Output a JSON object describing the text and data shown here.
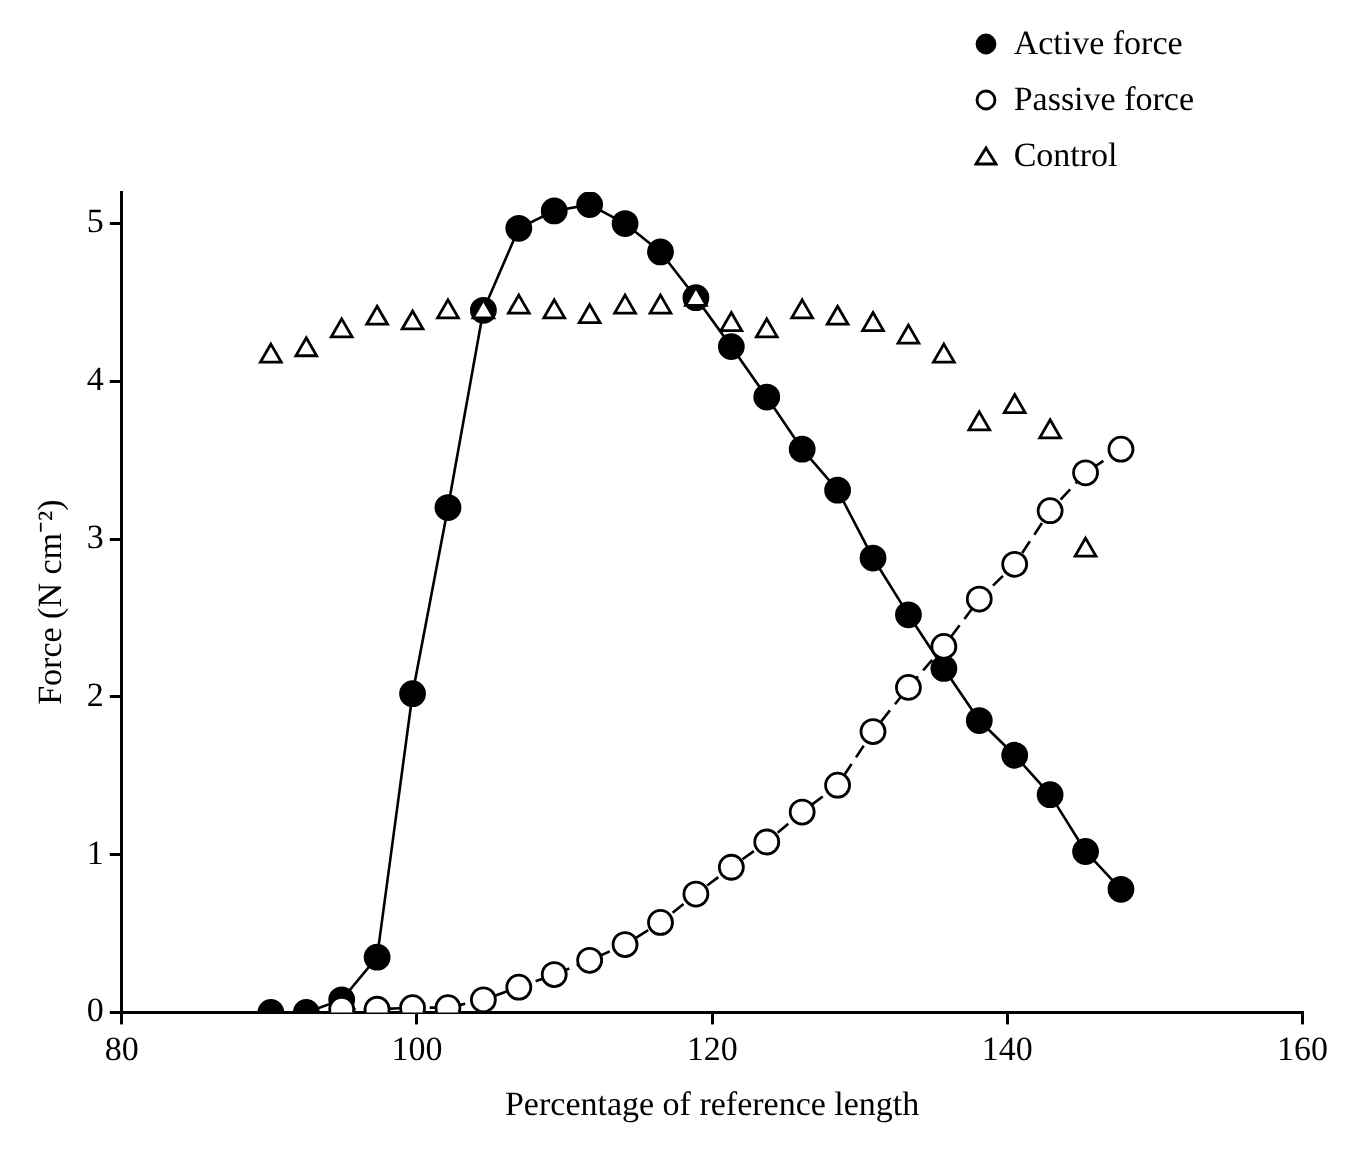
{
  "chart_data": {
    "type": "line",
    "xlabel": "Percentage of reference length",
    "ylabel": "Force (N cm⁻²)",
    "xlim": [
      80,
      160
    ],
    "xticks": [
      80,
      100,
      120,
      140,
      160
    ],
    "ylim": [
      0,
      5.2
    ],
    "yticks": [
      0,
      1,
      2,
      3,
      4,
      5
    ],
    "grid": false,
    "legend": "top right",
    "series": [
      {
        "name": "Active force",
        "color": "#000000",
        "marker": "circle",
        "line_style": "solid",
        "x": [
          90.1,
          92.5,
          94.9,
          97.3,
          99.7,
          102.1,
          104.5,
          106.9,
          109.3,
          111.7,
          114.1,
          116.5,
          118.9,
          121.3,
          123.7,
          126.1,
          128.5,
          130.9,
          133.3,
          135.7,
          138.1,
          140.5,
          142.9,
          145.3,
          147.7
        ],
        "values": [
          0,
          0,
          0.08,
          0.35,
          2.02,
          3.2,
          4.45,
          4.97,
          5.08,
          5.12,
          5.0,
          4.82,
          4.53,
          4.22,
          3.9,
          3.57,
          3.31,
          2.88,
          2.52,
          2.18,
          1.85,
          1.63,
          1.38,
          1.02,
          0.78
        ]
      },
      {
        "name": "Passive force",
        "color": "#000000",
        "marker": "circle",
        "line_style": "dashed",
        "x": [
          94.9,
          97.3,
          99.7,
          102.1,
          104.5,
          106.9,
          109.3,
          111.7,
          114.1,
          116.5,
          118.9,
          121.3,
          123.7,
          126.1,
          128.5,
          130.9,
          133.3,
          135.7,
          138.1,
          140.5,
          142.9,
          145.3,
          147.7
        ],
        "values": [
          0.02,
          0.02,
          0.03,
          0.03,
          0.08,
          0.16,
          0.24,
          0.33,
          0.43,
          0.57,
          0.75,
          0.92,
          1.08,
          1.27,
          1.44,
          1.78,
          2.06,
          2.32,
          2.62,
          2.84,
          3.18,
          3.42,
          3.57
        ]
      },
      {
        "name": "Control",
        "type": "scatter",
        "color": "#000000",
        "marker": "triangle",
        "x": [
          90.1,
          92.5,
          94.9,
          97.3,
          99.7,
          102.1,
          104.5,
          106.9,
          109.3,
          111.7,
          114.1,
          116.5,
          118.9,
          121.3,
          123.7,
          126.1,
          128.5,
          130.9,
          133.3,
          135.7,
          138.1,
          140.5,
          142.9,
          145.3
        ],
        "values": [
          4.16,
          4.2,
          4.32,
          4.4,
          4.37,
          4.44,
          4.44,
          4.47,
          4.44,
          4.41,
          4.47,
          4.47,
          4.52,
          4.36,
          4.32,
          4.44,
          4.4,
          4.36,
          4.28,
          4.16,
          3.73,
          3.84,
          3.68,
          2.93
        ]
      }
    ]
  }
}
